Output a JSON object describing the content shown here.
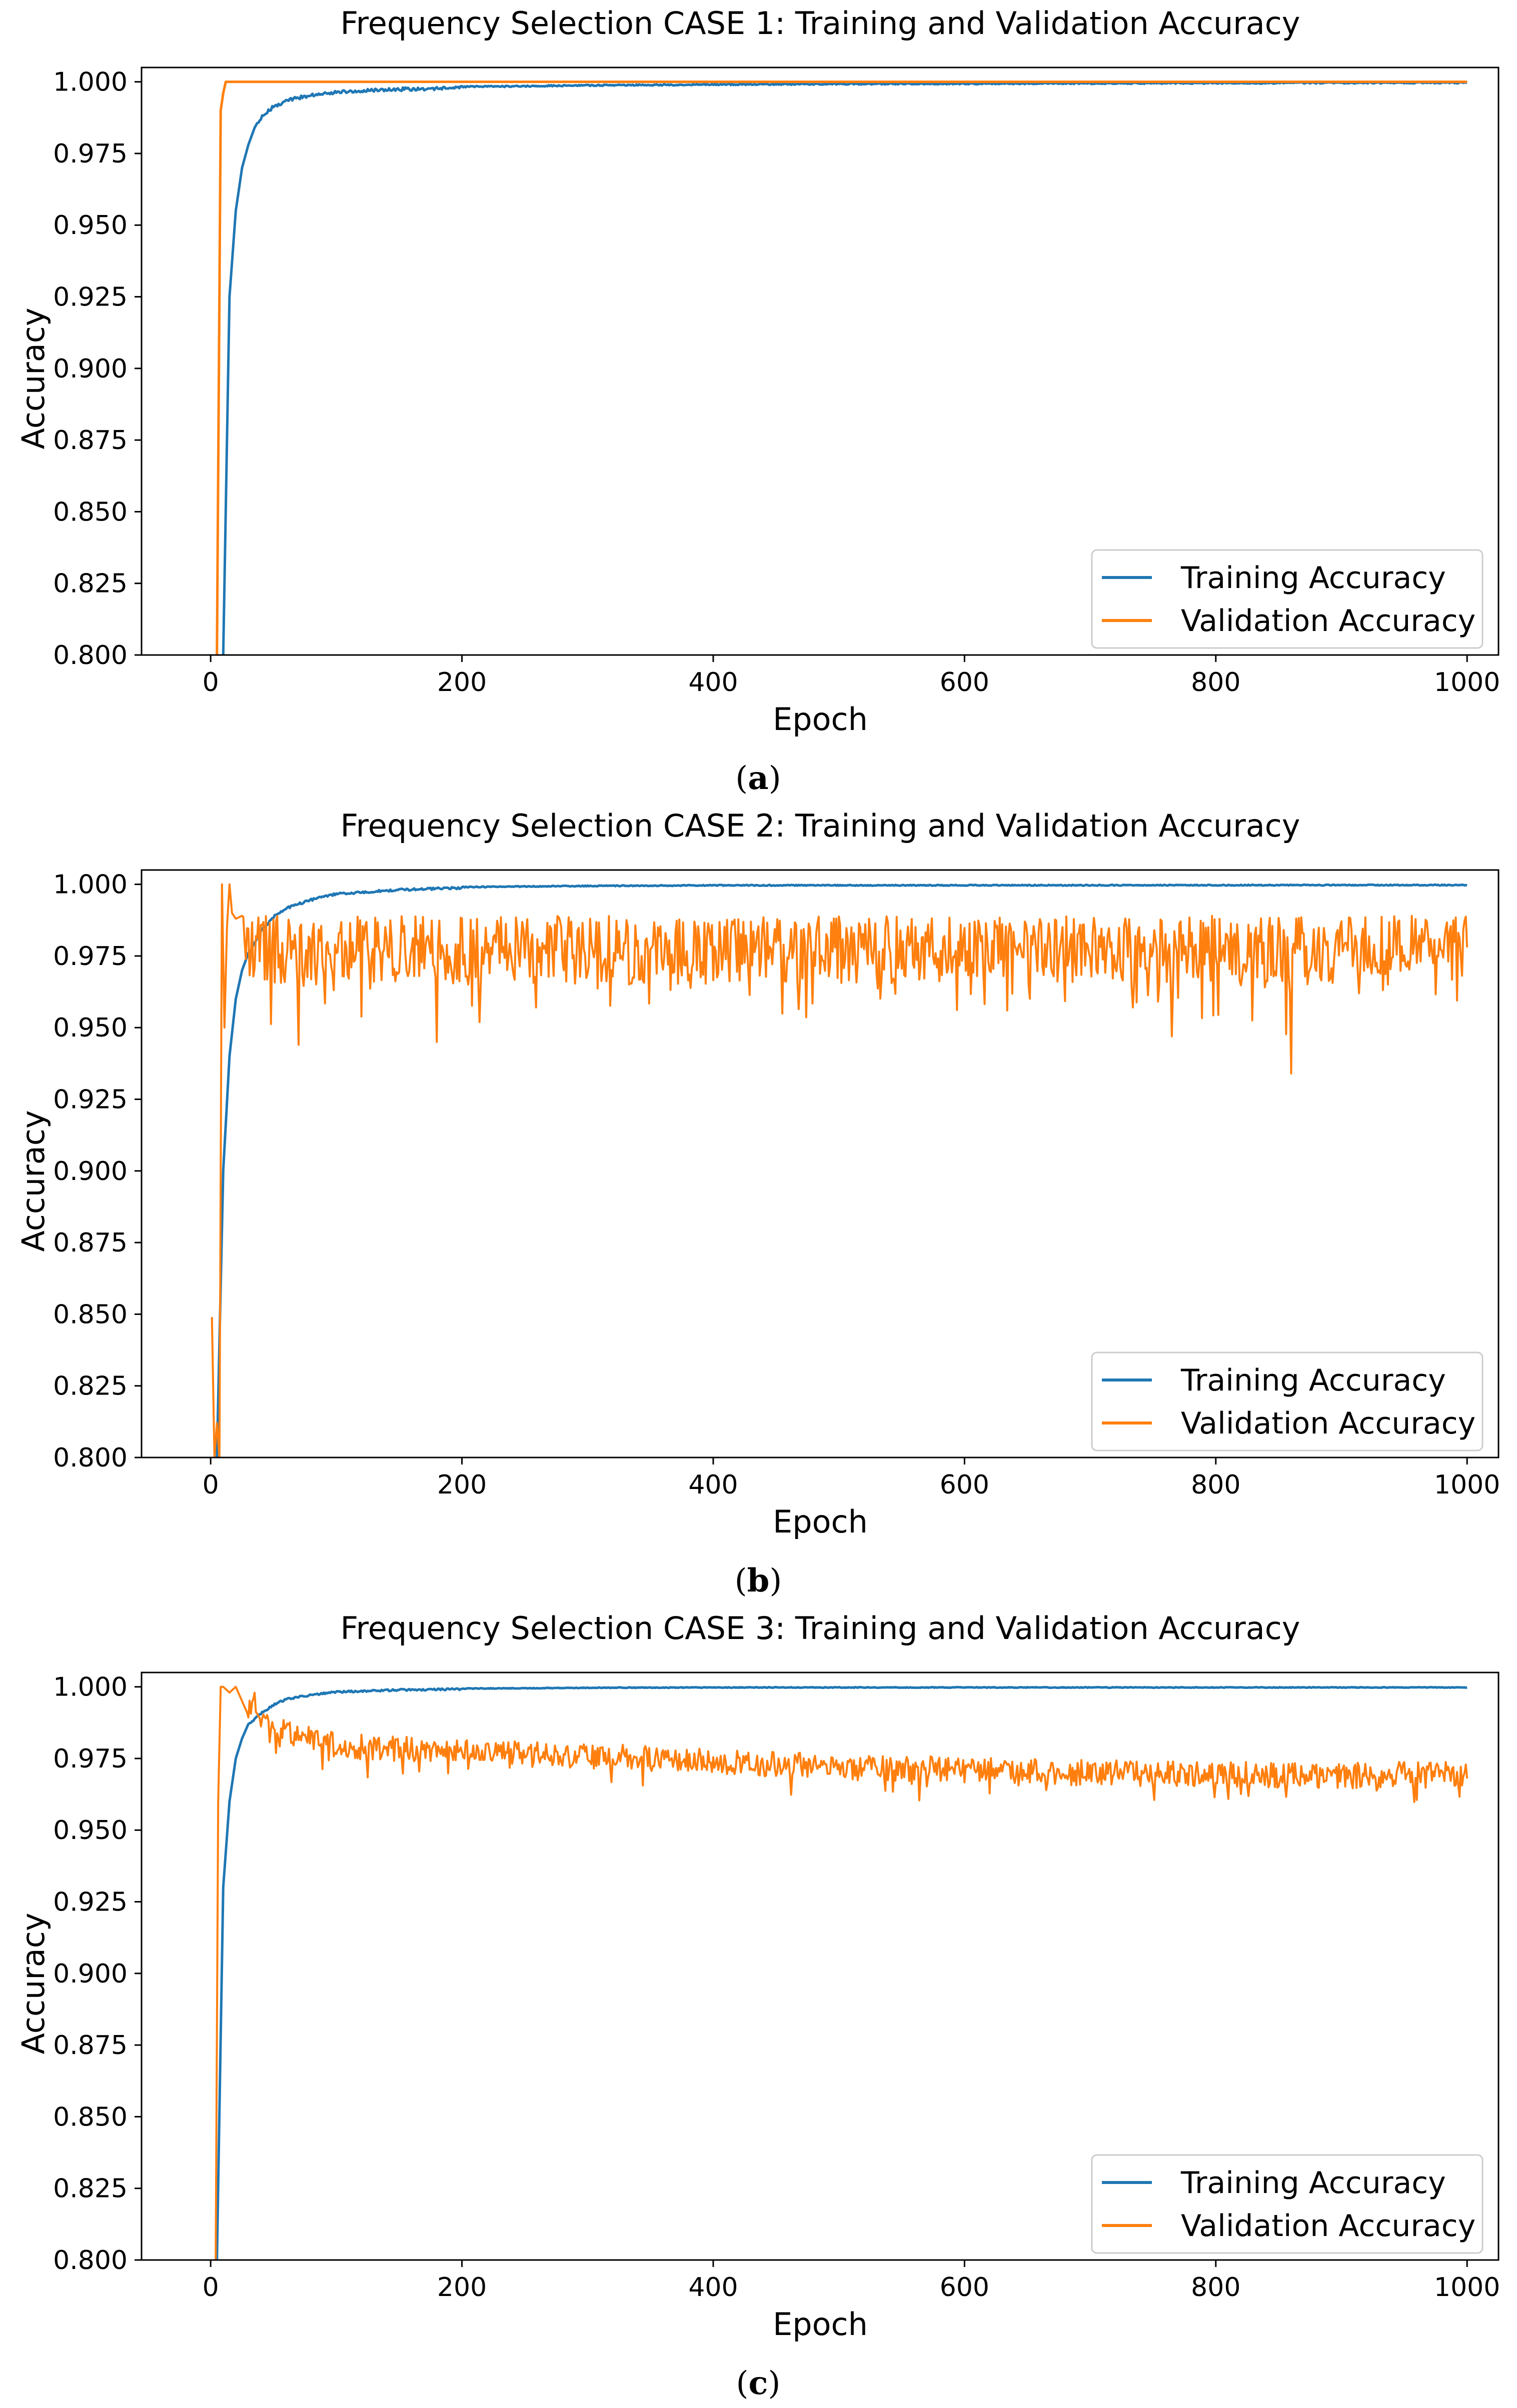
{
  "chart_data": [
    {
      "type": "line",
      "panel": "a",
      "caption": "(a)",
      "caption_open": "(",
      "caption_letter": "a",
      "caption_close": ")",
      "title": "Frequency Selection CASE 1: Training and Validation Accuracy",
      "xlabel": "Epoch",
      "ylabel": "Accuracy",
      "xlim": [
        -55,
        1025
      ],
      "ylim": [
        0.8,
        1.005
      ],
      "xticks": [
        0,
        200,
        400,
        600,
        800,
        1000
      ],
      "yticks": [
        0.8,
        0.825,
        0.85,
        0.875,
        0.9,
        0.925,
        0.95,
        0.975,
        1.0
      ],
      "yticklabels": [
        "0.800",
        "0.825",
        "0.850",
        "0.875",
        "0.900",
        "0.925",
        "0.950",
        "0.975",
        "1.000"
      ],
      "legend_position": "lower-right",
      "series": [
        {
          "name": "Training Accuracy",
          "color": "#1f77b4",
          "x": [
            10,
            15,
            20,
            25,
            30,
            35,
            40,
            45,
            50,
            60,
            70,
            80,
            100,
            120,
            150,
            200,
            300,
            400,
            500,
            600,
            700,
            800,
            900,
            1000
          ],
          "values": [
            0.8,
            0.925,
            0.955,
            0.97,
            0.978,
            0.984,
            0.988,
            0.99,
            0.992,
            0.994,
            0.995,
            0.996,
            0.997,
            0.9975,
            0.998,
            0.9985,
            0.999,
            0.9993,
            0.9995,
            0.9996,
            0.9997,
            0.9998,
            0.9999,
            0.9999
          ],
          "noise": 0.0012
        },
        {
          "name": "Validation Accuracy",
          "color": "#ff7f0e",
          "x": [
            5,
            8,
            10,
            12,
            1000
          ],
          "values": [
            0.8,
            0.99,
            0.996,
            1.0,
            1.0
          ],
          "noise": 0
        }
      ]
    },
    {
      "type": "line",
      "panel": "b",
      "caption": "(b)",
      "caption_open": "(",
      "caption_letter": "b",
      "caption_close": ")",
      "title": "Frequency Selection CASE 2: Training and Validation Accuracy",
      "xlabel": "Epoch",
      "ylabel": "Accuracy",
      "xlim": [
        -55,
        1025
      ],
      "ylim": [
        0.8,
        1.005
      ],
      "xticks": [
        0,
        200,
        400,
        600,
        800,
        1000
      ],
      "yticks": [
        0.8,
        0.825,
        0.85,
        0.875,
        0.9,
        0.925,
        0.95,
        0.975,
        1.0
      ],
      "yticklabels": [
        "0.800",
        "0.825",
        "0.850",
        "0.875",
        "0.900",
        "0.925",
        "0.950",
        "0.975",
        "1.000"
      ],
      "legend_position": "lower-right",
      "series": [
        {
          "name": "Training Accuracy",
          "color": "#1f77b4",
          "x": [
            5,
            10,
            15,
            20,
            25,
            30,
            40,
            50,
            60,
            80,
            100,
            150,
            200,
            300,
            400,
            1000
          ],
          "values": [
            0.8,
            0.9,
            0.94,
            0.96,
            0.97,
            0.976,
            0.984,
            0.989,
            0.992,
            0.995,
            0.997,
            0.9985,
            0.9992,
            0.9996,
            0.9998,
            0.9999
          ],
          "noise": 0.0008
        },
        {
          "name": "Validation Accuracy",
          "color": "#ff7f0e",
          "x": [
            1,
            3,
            5,
            7,
            9,
            11,
            13,
            15,
            17,
            20,
            25,
            30,
            40,
            70,
            180,
            520,
            765,
            860,
            1000
          ],
          "values": [
            0.849,
            0.8,
            0.812,
            0.8,
            1.0,
            0.95,
            0.985,
            1.0,
            0.99,
            0.988,
            0.989,
            0.987,
            0.985,
            0.944,
            0.945,
            0.955,
            0.947,
            0.934,
            0.978
          ],
          "noise": 0.006
        }
      ]
    },
    {
      "type": "line",
      "panel": "c",
      "caption": "(c)",
      "caption_open": "(",
      "caption_letter": "c",
      "caption_close": ")",
      "title": "Frequency Selection CASE 3: Training and Validation Accuracy",
      "xlabel": "Epoch",
      "ylabel": "Accuracy",
      "xlim": [
        -55,
        1025
      ],
      "ylim": [
        0.8,
        1.005
      ],
      "xticks": [
        0,
        200,
        400,
        600,
        800,
        1000
      ],
      "yticks": [
        0.8,
        0.825,
        0.85,
        0.875,
        0.9,
        0.925,
        0.95,
        0.975,
        1.0
      ],
      "yticklabels": [
        "0.800",
        "0.825",
        "0.850",
        "0.875",
        "0.900",
        "0.925",
        "0.950",
        "0.975",
        "1.000"
      ],
      "legend_position": "lower-right",
      "series": [
        {
          "name": "Training Accuracy",
          "color": "#1f77b4",
          "x": [
            5,
            10,
            15,
            20,
            25,
            30,
            40,
            50,
            60,
            80,
            100,
            150,
            200,
            300,
            400,
            1000
          ],
          "values": [
            0.8,
            0.93,
            0.96,
            0.975,
            0.982,
            0.987,
            0.991,
            0.994,
            0.996,
            0.9975,
            0.9985,
            0.9992,
            0.9995,
            0.9998,
            0.9999,
            0.9999
          ],
          "noise": 0.0006
        },
        {
          "name": "Validation Accuracy",
          "color": "#ff7f0e",
          "x": [
            4,
            6,
            8,
            10,
            15,
            20,
            25,
            30,
            35,
            40,
            50,
            100,
            200,
            300,
            500,
            700,
            900,
            1000
          ],
          "values": [
            0.8,
            0.96,
            1.0,
            1.0,
            0.998,
            1.0,
            0.995,
            0.99,
            0.995,
            0.988,
            0.985,
            0.98,
            0.977,
            0.976,
            0.972,
            0.97,
            0.969,
            0.97
          ],
          "noise": 0.0045
        }
      ]
    }
  ]
}
